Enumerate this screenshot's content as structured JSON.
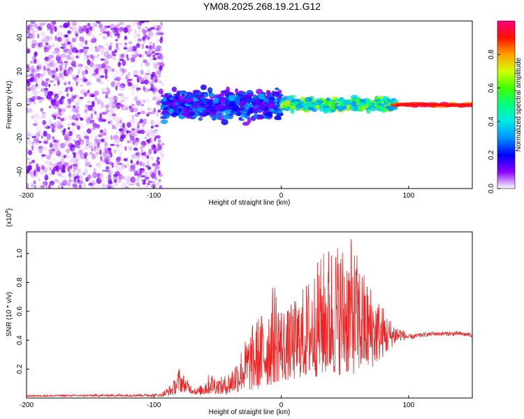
{
  "title": "YM08.2025.268.19.21.G12",
  "chart_data": [
    {
      "type": "heatmap",
      "name": "spectrogram",
      "xlabel": "Height of straight line (km)",
      "ylabel": "Frequency (Hz)",
      "xlim": [
        -200,
        150
      ],
      "ylim": [
        -50,
        50
      ],
      "xticks": [
        "-200",
        "-100",
        "0",
        "100"
      ],
      "xtick_values": [
        -200,
        -100,
        0,
        100
      ],
      "yticks": [
        "-40",
        "-20",
        "0",
        "20",
        "40"
      ],
      "ytick_values": [
        -40,
        -20,
        0,
        20,
        40
      ],
      "colorbar": {
        "label": "Normalized spectral amplitude",
        "range": [
          0,
          1
        ],
        "ticks": [
          "0.0",
          "0.2",
          "0.4",
          "0.6",
          "0.8"
        ],
        "tick_values": [
          0.0,
          0.2,
          0.4,
          0.6,
          0.8
        ]
      },
      "regions": [
        {
          "x_range": [
            -200,
            -93
          ],
          "f_range": [
            -50,
            50
          ],
          "amplitude": [
            0.02,
            0.12
          ],
          "pattern": "scattered noise"
        },
        {
          "x_range": [
            -93,
            0
          ],
          "f_range": [
            -12,
            12
          ],
          "amplitude": [
            0.1,
            0.35
          ],
          "pattern": "broad band"
        },
        {
          "x_range": [
            0,
            90
          ],
          "f_range": [
            -5,
            6
          ],
          "amplitude": [
            0.3,
            0.75
          ],
          "pattern": "narrowing band"
        },
        {
          "x_range": [
            90,
            150
          ],
          "f_range": [
            -1.5,
            1.5
          ],
          "amplitude": [
            0.8,
            1.0
          ],
          "pattern": "narrow line near 0 Hz"
        }
      ]
    },
    {
      "type": "line",
      "name": "snr",
      "xlabel": "Height of straight line (km)",
      "ylabel": "SNR (10 * v/v)",
      "exponent_label": "(x10",
      "exponent": "4",
      "exponent_close": ")",
      "xlim": [
        -200,
        150
      ],
      "ylim": [
        0,
        1.15
      ],
      "xticks": [
        "-200",
        "-100",
        "0",
        "100"
      ],
      "xtick_values": [
        -200,
        -100,
        0,
        100
      ],
      "yticks": [
        "0.2",
        "0.4",
        "0.6",
        "0.8",
        "1.0"
      ],
      "ytick_values": [
        0.2,
        0.4,
        0.6,
        0.8,
        1.0
      ],
      "color": "#ee2222",
      "envelope": {
        "x": [
          -200,
          -95,
          -85,
          -80,
          -75,
          -70,
          -65,
          -60,
          -55,
          -50,
          -45,
          -40,
          -35,
          -30,
          -25,
          -20,
          -15,
          -10,
          -5,
          0,
          5,
          10,
          15,
          20,
          25,
          30,
          35,
          40,
          45,
          50,
          55,
          60,
          65,
          70,
          75,
          80,
          85,
          90,
          95,
          100,
          110,
          120,
          130,
          140,
          150
        ],
        "base": [
          0.01,
          0.01,
          0.02,
          0.04,
          0.04,
          0.03,
          0.02,
          0.02,
          0.03,
          0.03,
          0.02,
          0.03,
          0.04,
          0.05,
          0.05,
          0.05,
          0.07,
          0.08,
          0.1,
          0.12,
          0.12,
          0.12,
          0.14,
          0.14,
          0.14,
          0.15,
          0.15,
          0.15,
          0.16,
          0.16,
          0.16,
          0.17,
          0.18,
          0.2,
          0.24,
          0.28,
          0.33,
          0.38,
          0.4,
          0.4,
          0.42,
          0.43,
          0.43,
          0.43,
          0.42
        ],
        "peak": [
          0.02,
          0.03,
          0.11,
          0.22,
          0.14,
          0.09,
          0.07,
          0.14,
          0.18,
          0.14,
          0.15,
          0.2,
          0.28,
          0.38,
          0.46,
          0.56,
          0.6,
          0.7,
          0.82,
          0.66,
          0.62,
          0.68,
          0.74,
          0.82,
          0.9,
          0.97,
          1.05,
          1.1,
          1.1,
          1.09,
          1.1,
          1.0,
          0.88,
          0.8,
          0.72,
          0.64,
          0.56,
          0.52,
          0.48,
          0.44,
          0.45,
          0.46,
          0.46,
          0.46,
          0.45
        ]
      }
    }
  ]
}
